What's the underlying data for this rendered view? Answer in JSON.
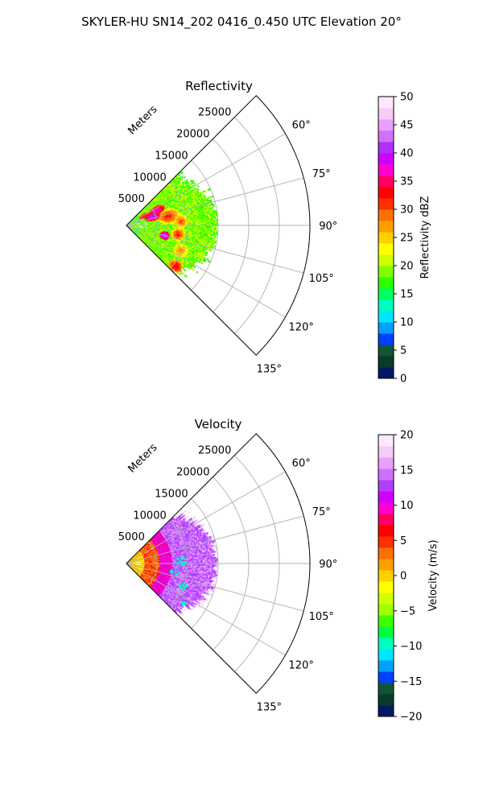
{
  "suptitle": "SKYLER-HU  SN14_202  0416_0.450 UTC Elevation 20°",
  "chart_data": [
    {
      "type": "heatmap",
      "projection": "polar-sector",
      "title": "Reflectivity",
      "range_label": "Meters",
      "range_ticks": [
        5000,
        10000,
        15000,
        20000,
        25000
      ],
      "range_tick_labels": [
        "5000",
        "10000",
        "15000",
        "20000",
        "25000"
      ],
      "range_max": 30000,
      "azimuth_range_deg": [
        45,
        135
      ],
      "azimuth_ticks_deg": [
        60,
        75,
        90,
        105,
        120,
        135
      ],
      "azimuth_tick_labels": [
        "60°",
        "75°",
        "90°",
        "105°",
        "120°",
        "135°"
      ],
      "data_extent_m": 15000,
      "field": "reflectivity",
      "colorbar": {
        "label": "Reflectivity dBZ",
        "vmin": 0,
        "vmax": 50,
        "ticks": [
          0,
          5,
          10,
          15,
          20,
          25,
          30,
          35,
          40,
          45,
          50
        ],
        "tick_labels": [
          "0",
          "5",
          "10",
          "15",
          "20",
          "25",
          "30",
          "35",
          "40",
          "45",
          "50"
        ]
      },
      "grid": true
    },
    {
      "type": "heatmap",
      "projection": "polar-sector",
      "title": "Velocity",
      "range_label": "Meters",
      "range_ticks": [
        5000,
        10000,
        15000,
        20000,
        25000
      ],
      "range_tick_labels": [
        "5000",
        "10000",
        "15000",
        "20000",
        "25000"
      ],
      "range_max": 30000,
      "azimuth_range_deg": [
        45,
        135
      ],
      "azimuth_ticks_deg": [
        60,
        75,
        90,
        105,
        120,
        135
      ],
      "azimuth_tick_labels": [
        "60°",
        "75°",
        "90°",
        "105°",
        "120°",
        "135°"
      ],
      "data_extent_m": 15000,
      "field": "velocity",
      "colorbar": {
        "label": "Velocity (m/s)",
        "vmin": -20,
        "vmax": 20,
        "ticks": [
          -20,
          -15,
          -10,
          -5,
          0,
          5,
          10,
          15,
          20
        ],
        "tick_labels": [
          "−20",
          "−15",
          "−10",
          "−5",
          "0",
          "5",
          "10",
          "15",
          "20"
        ]
      },
      "grid": true
    }
  ],
  "colors": {
    "reflectivity_scale": [
      "#001a66",
      "#0a3a2a",
      "#115533",
      "#0040ff",
      "#00a0ff",
      "#00e6ff",
      "#00ffc0",
      "#00ff60",
      "#30ff00",
      "#80ff00",
      "#d0ff00",
      "#ffff00",
      "#ffd000",
      "#ffa000",
      "#ff7000",
      "#ff3000",
      "#ff0000",
      "#ff0060",
      "#ff00d0",
      "#d000ff",
      "#b030ff",
      "#d070ff",
      "#e8a0ff",
      "#f5ccf5",
      "#ffe8ff"
    ],
    "velocity_scale": [
      "#001a66",
      "#0a3a2a",
      "#115533",
      "#0040ff",
      "#00a0ff",
      "#00e6ff",
      "#00ffc0",
      "#00ff40",
      "#40ff00",
      "#a0ff00",
      "#d0ff00",
      "#ffff00",
      "#ffd000",
      "#ffa000",
      "#ff7000",
      "#ff3000",
      "#ff0000",
      "#ff0060",
      "#ff00d0",
      "#d000ff",
      "#b040ff",
      "#d070ff",
      "#e8a0ff",
      "#f5ccf5",
      "#ffe8ff"
    ],
    "grid": "#b0b0b0"
  }
}
